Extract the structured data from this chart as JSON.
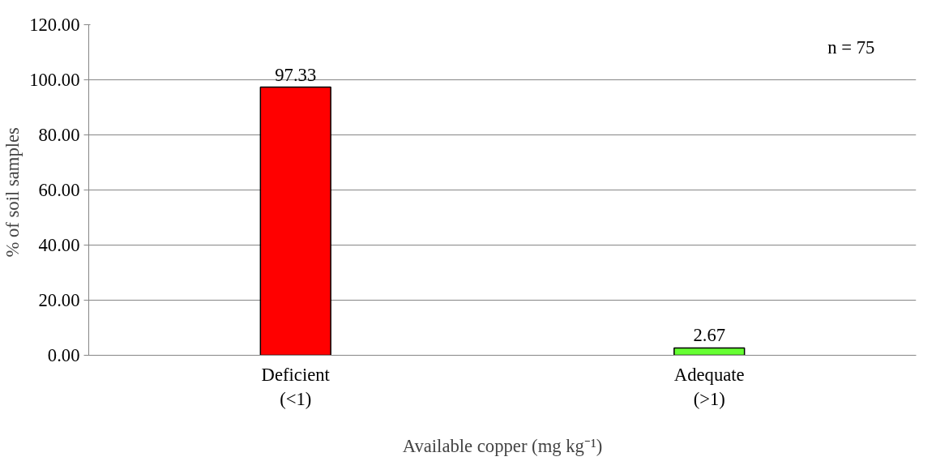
{
  "chart_data": {
    "type": "bar",
    "xlabel": "Available copper (mg kg⁻¹)",
    "ylabel": "% of  soil samples",
    "categories": [
      "Deficient\n(<1)",
      "Adequate\n(>1)"
    ],
    "values": [
      97.33,
      2.67
    ],
    "colors": [
      "#ff0000",
      "#66ff33"
    ],
    "ylim": [
      0,
      120
    ],
    "yticks": [
      {
        "value": 0,
        "label": "0.00"
      },
      {
        "value": 20,
        "label": "20.00"
      },
      {
        "value": 40,
        "label": "40.00"
      },
      {
        "value": 60,
        "label": "60.00"
      },
      {
        "value": 80,
        "label": "80.00"
      },
      {
        "value": 100,
        "label": "100.00"
      },
      {
        "value": 120,
        "label": "120.00"
      }
    ],
    "grid": "y",
    "data_labels": true,
    "annotations": [
      "n = 75"
    ]
  }
}
